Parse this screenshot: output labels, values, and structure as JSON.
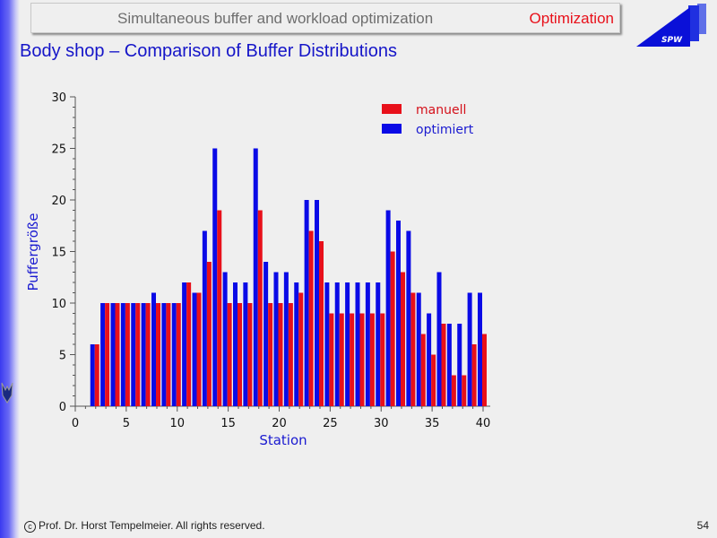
{
  "header": {
    "title": "Simultaneous buffer and workload optimization",
    "section": "Optimization",
    "logo_text": "SPW"
  },
  "page_title": "Body shop – Comparison of Buffer Distributions",
  "footer": {
    "copyright_symbol": "c",
    "copyright": "Prof. Dr. Horst Tempelmeier. All rights reserved.",
    "page_number": "54"
  },
  "colors": {
    "manuell": "#e8101a",
    "optimiert": "#0a0ae6",
    "accent": "#1515c8"
  },
  "chart_data": {
    "type": "bar",
    "title": "",
    "xlabel": "Station",
    "ylabel": "Puffergröße",
    "xlim": [
      0,
      40
    ],
    "ylim": [
      0,
      30
    ],
    "x_ticks": [
      0,
      5,
      10,
      15,
      20,
      25,
      30,
      35,
      40
    ],
    "y_ticks": [
      0,
      5,
      10,
      15,
      20,
      25,
      30
    ],
    "grid": false,
    "legend_position": "top-right",
    "x": [
      2,
      3,
      4,
      5,
      6,
      7,
      8,
      9,
      10,
      11,
      12,
      13,
      14,
      15,
      16,
      17,
      18,
      19,
      20,
      21,
      22,
      23,
      24,
      25,
      26,
      27,
      28,
      29,
      30,
      31,
      32,
      33,
      34,
      35,
      36,
      37,
      38,
      39,
      40
    ],
    "series": [
      {
        "name": "manuell",
        "values": [
          6,
          10,
          10,
          10,
          10,
          10,
          10,
          10,
          10,
          12,
          11,
          14,
          19,
          10,
          10,
          10,
          19,
          10,
          10,
          10,
          11,
          17,
          16,
          9,
          9,
          9,
          9,
          9,
          9,
          15,
          13,
          11,
          7,
          5,
          8,
          3,
          3,
          6,
          7
        ]
      },
      {
        "name": "optimiert",
        "values": [
          6,
          10,
          10,
          10,
          10,
          10,
          11,
          10,
          10,
          12,
          11,
          17,
          25,
          13,
          12,
          12,
          25,
          14,
          13,
          13,
          12,
          20,
          20,
          12,
          12,
          12,
          12,
          12,
          12,
          19,
          18,
          17,
          11,
          9,
          13,
          8,
          8,
          11,
          11
        ]
      }
    ]
  }
}
